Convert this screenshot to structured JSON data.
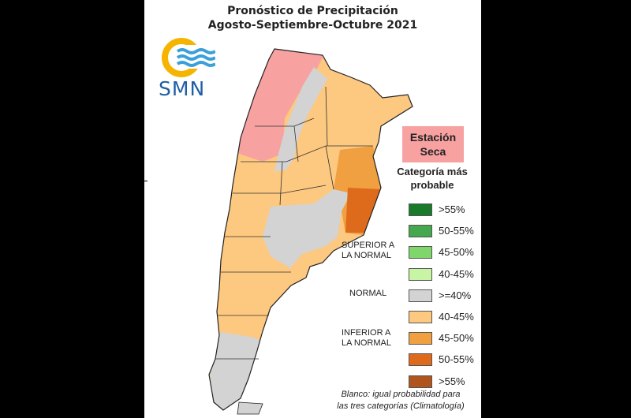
{
  "title": {
    "line1": "Pronóstico de Precipitación",
    "line2": "Agosto-Septiembre-Octubre 2021"
  },
  "logo": {
    "text": "SMN"
  },
  "season_label": {
    "line1": "Estación",
    "line2": "Seca"
  },
  "legend": {
    "title_line1": "Categoría más",
    "title_line2": "probable",
    "items": [
      {
        "label": ">55%",
        "color": "#1a7a2c"
      },
      {
        "label": "50-55%",
        "color": "#45a84f"
      },
      {
        "label": "45-50%",
        "color": "#7fd66a"
      },
      {
        "label": "40-45%",
        "color": "#c8f5a4"
      },
      {
        "label": ">=40%",
        "color": "#d3d3d3"
      },
      {
        "label": "40-45%",
        "color": "#fdc87f"
      },
      {
        "label": "45-50%",
        "color": "#f0a040"
      },
      {
        "label": "50-55%",
        "color": "#de6a1c"
      },
      {
        "label": ">55%",
        "color": "#b0551c"
      }
    ],
    "groups": {
      "superior_line1": "SUPERIOR A",
      "superior_line2": "LA NORMAL",
      "normal": "NORMAL",
      "inferior_line1": "INFERIOR A",
      "inferior_line2": "LA NORMAL"
    }
  },
  "note": {
    "line1": "Blanco: igual probabilidad para",
    "line2": "las tres categorías (Climatología)"
  },
  "map_colors": {
    "dry_season": "#f7a1a1",
    "normal": "#d3d3d3",
    "below_40_45": "#fdc87f",
    "below_45_50": "#f0a040",
    "below_50_55": "#de6a1c"
  }
}
